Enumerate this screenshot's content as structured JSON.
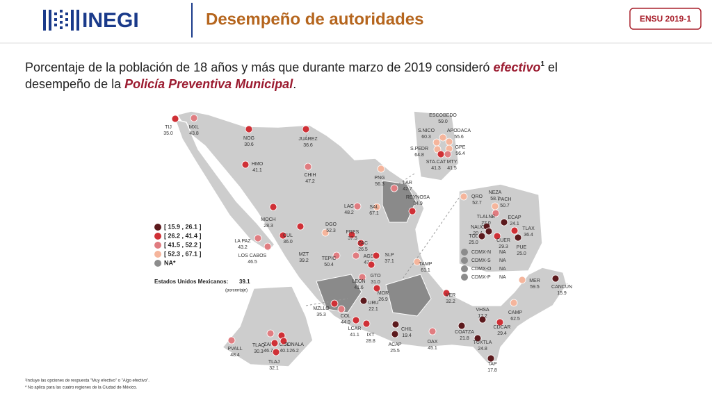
{
  "header": {
    "logo": "INEGI",
    "title": "Desempeño de autoridades",
    "badge": "ENSU 2019-1"
  },
  "subtitle": [
    "Porcentaje de la población de 18 años y más que durante marzo de 2019 consideró ",
    "efectivo",
    "1",
    " el desempeño de la ",
    "Policía Preventiva Municipal",
    "."
  ],
  "legend": [
    {
      "label": "[ 15.9 , 26.1 ]",
      "color": "#5c1a1d"
    },
    {
      "label": "[ 26.2 , 41.4 ]",
      "color": "#cf3036"
    },
    {
      "label": "[ 41.5 , 52.2 ]",
      "color": "#e07c80"
    },
    {
      "label": "[ 52.3 , 67.1 ]",
      "color": "#f5b59c"
    },
    {
      "label": "NA*",
      "color": "#8c8c8c"
    }
  ],
  "national": {
    "label": "Estados Unidos Mexicanos:",
    "value": "39.1",
    "unit": "(porcentaje)"
  },
  "cities": [
    {
      "name": "TIJ",
      "value": "35.0",
      "color": "#cf3036"
    },
    {
      "name": "MXL",
      "value": "43.8",
      "color": "#e07c80"
    },
    {
      "name": "NOG",
      "value": "30.6",
      "color": "#cf3036"
    },
    {
      "name": "JUÁREZ",
      "value": "36.6",
      "color": "#cf3036"
    },
    {
      "name": "HMO",
      "value": "41.1",
      "color": "#cf3036"
    },
    {
      "name": "CHIH",
      "value": "47.2",
      "color": "#e07c80"
    },
    {
      "name": "ESCOBEDO",
      "value": "59.0",
      "color": "#f5b59c"
    },
    {
      "name": "S.NICO",
      "value": "60.3",
      "color": "#f5b59c"
    },
    {
      "name": "APODACA",
      "value": "55.6",
      "color": "#f5b59c"
    },
    {
      "name": "S.PEDR",
      "value": "64.8",
      "color": "#f5b59c"
    },
    {
      "name": "GPE",
      "value": "56.4",
      "color": "#f5b59c"
    },
    {
      "name": "STA.CAT",
      "value": "41.3",
      "color": "#cf3036"
    },
    {
      "name": "MTY",
      "value": "41.5",
      "color": "#e07c80"
    },
    {
      "name": "PNG",
      "value": "56.3",
      "color": "#f5b59c"
    },
    {
      "name": "LAR",
      "value": "42.7",
      "color": "#e07c80"
    },
    {
      "name": "REYNOSA",
      "value": "34.9",
      "color": "#cf3036"
    },
    {
      "name": "LAG",
      "value": "48.2",
      "color": "#e07c80"
    },
    {
      "name": "SAL",
      "value": "67.1",
      "color": "#f5b59c"
    },
    {
      "name": "MOCH",
      "value": "28.3",
      "color": "#cf3036"
    },
    {
      "name": "LA PAZ",
      "value": "43.2",
      "color": "#e07c80"
    },
    {
      "name": "LOS CABOS",
      "value": "46.5",
      "color": "#e07c80"
    },
    {
      "name": "CUL",
      "value": "36.0",
      "color": "#cf3036"
    },
    {
      "name": "MZT",
      "value": "39.2",
      "color": "#cf3036"
    },
    {
      "name": "DGO",
      "value": "52.3",
      "color": "#f5b59c"
    },
    {
      "name": "FRES",
      "value": "37.5",
      "color": "#cf3036"
    },
    {
      "name": "ZAC",
      "value": "26.5",
      "color": "#cf3036"
    },
    {
      "name": "TEPIC",
      "value": "50.4",
      "color": "#e07c80"
    },
    {
      "name": "AGS",
      "value": "47.7",
      "color": "#e07c80"
    },
    {
      "name": "SLP",
      "value": "37.1",
      "color": "#cf3036"
    },
    {
      "name": "TAMP",
      "value": "61.1",
      "color": "#f5b59c"
    },
    {
      "name": "GTO",
      "value": "31.0",
      "color": "#cf3036"
    },
    {
      "name": "LEON",
      "value": "41.6",
      "color": "#e07c80"
    },
    {
      "name": "MOR",
      "value": "26.9",
      "color": "#cf3036"
    },
    {
      "name": "VER",
      "value": "32.2",
      "color": "#cf3036"
    },
    {
      "name": "QRO",
      "value": "52.7",
      "color": "#f5b59c"
    },
    {
      "name": "NEZA",
      "value": "58.7",
      "color": "#f5b59c"
    },
    {
      "name": "PACH",
      "value": "50.7",
      "color": "#e07c80"
    },
    {
      "name": "TLALNE",
      "value": "22.0",
      "color": "#5c1a1d"
    },
    {
      "name": "ECAP",
      "value": "24.1",
      "color": "#5c1a1d"
    },
    {
      "name": "NAUC",
      "value": "20.4",
      "color": "#5c1a1d"
    },
    {
      "name": "TLAX",
      "value": "36.4",
      "color": "#cf3036"
    },
    {
      "name": "TOL",
      "value": "25.0",
      "color": "#5c1a1d"
    },
    {
      "name": "CUER",
      "value": "29.3",
      "color": "#cf3036"
    },
    {
      "name": "PUE",
      "value": "25.0",
      "color": "#5c1a1d"
    },
    {
      "name": "MER",
      "value": "59.5",
      "color": "#f5b59c"
    },
    {
      "name": "CANCÚN",
      "value": "15.9",
      "color": "#5c1a1d"
    },
    {
      "name": "MZLLO",
      "value": "35.3",
      "color": "#cf3036"
    },
    {
      "name": "COL",
      "value": "44.0",
      "color": "#e07c80"
    },
    {
      "name": "URU",
      "value": "22.1",
      "color": "#5c1a1d"
    },
    {
      "name": "CAMP",
      "value": "62.5",
      "color": "#f5b59c"
    },
    {
      "name": "VHSA",
      "value": "17.2",
      "color": "#5c1a1d"
    },
    {
      "name": "CDCAR",
      "value": "29.4",
      "color": "#cf3036"
    },
    {
      "name": "COATZA",
      "value": "21.8",
      "color": "#5c1a1d"
    },
    {
      "name": "CHIL",
      "value": "19.4",
      "color": "#5c1a1d"
    },
    {
      "name": "LCAR",
      "value": "41.1",
      "color": "#cf3036"
    },
    {
      "name": "IXT",
      "value": "28.8",
      "color": "#cf3036"
    },
    {
      "name": "ZAP",
      "value": "46.7",
      "color": "#e07c80"
    },
    {
      "name": "GDL",
      "value": "40.1",
      "color": "#cf3036"
    },
    {
      "name": "TONALA",
      "value": "26.2",
      "color": "#cf3036"
    },
    {
      "name": "TLAQ",
      "value": "30.3",
      "color": "#cf3036"
    },
    {
      "name": "TLAJ",
      "value": "32.1",
      "color": "#cf3036"
    },
    {
      "name": "PVALL",
      "value": "48.4",
      "color": "#e07c80"
    },
    {
      "name": "ACAP",
      "value": "25.5",
      "color": "#5c1a1d"
    },
    {
      "name": "OAX",
      "value": "45.1",
      "color": "#e07c80"
    },
    {
      "name": "TUXTLA",
      "value": "24.8",
      "color": "#5c1a1d"
    },
    {
      "name": "TAP",
      "value": "17.8",
      "color": "#5c1a1d"
    }
  ],
  "cdmx_na": [
    {
      "name": "CDMX-N",
      "value": "NA",
      "color": "#8c8c8c"
    },
    {
      "name": "CDMX-S",
      "value": "NA",
      "color": "#8c8c8c"
    },
    {
      "name": "CDMX-O",
      "value": "NA",
      "color": "#8c8c8c"
    },
    {
      "name": "CDMX-P",
      "value": "NA",
      "color": "#8c8c8c"
    }
  ],
  "footnotes": [
    "¹Incluye las opciones de respuesta \"Muy efectivo\" o \"Algo efectivo\".",
    "* No aplica para las cuatro regiones de la Ciudad de México."
  ]
}
